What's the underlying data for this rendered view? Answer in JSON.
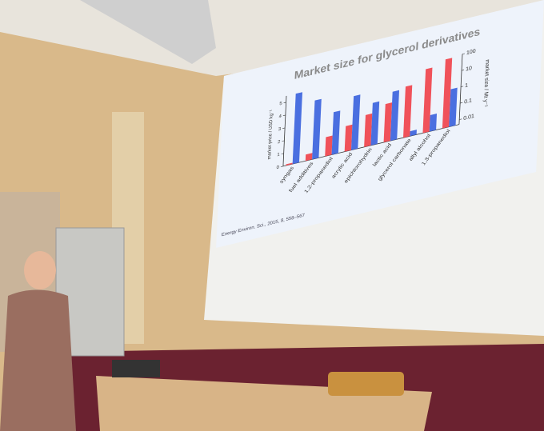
{
  "chart_data": {
    "type": "bar",
    "title": "Market size for glycerol derivatives",
    "ylabel": "market price / USD kg⁻¹",
    "y2label": "market size / Mt y⁻¹",
    "source": "Energy Environ. Sci., 2015, 8, 558–567",
    "categories": [
      "syngas",
      "fuel additives",
      "1,2-propanediol",
      "acrylic acid",
      "epichlorohydrin",
      "lactic acid",
      "glycerol carbonate",
      "allyl alcohol",
      "1,3-propanediol"
    ],
    "series": [
      {
        "name": "market price",
        "color": "#f0525a",
        "values": [
          0.1,
          0.5,
          1.5,
          2,
          2.5,
          3,
          4,
          5,
          5.4
        ]
      },
      {
        "name": "market size",
        "color": "#4a6fe0",
        "axis": "y2",
        "values": [
          100,
          20,
          2,
          10,
          2,
          5,
          0.01,
          0.05,
          1
        ]
      }
    ],
    "ylim": [
      0,
      5.5
    ],
    "yticks": [
      0,
      1,
      2,
      3,
      4,
      5
    ],
    "y2lim": [
      0.005,
      100
    ],
    "y2ticks": [
      0.01,
      0.1,
      1,
      10,
      100
    ],
    "y2log": true
  }
}
